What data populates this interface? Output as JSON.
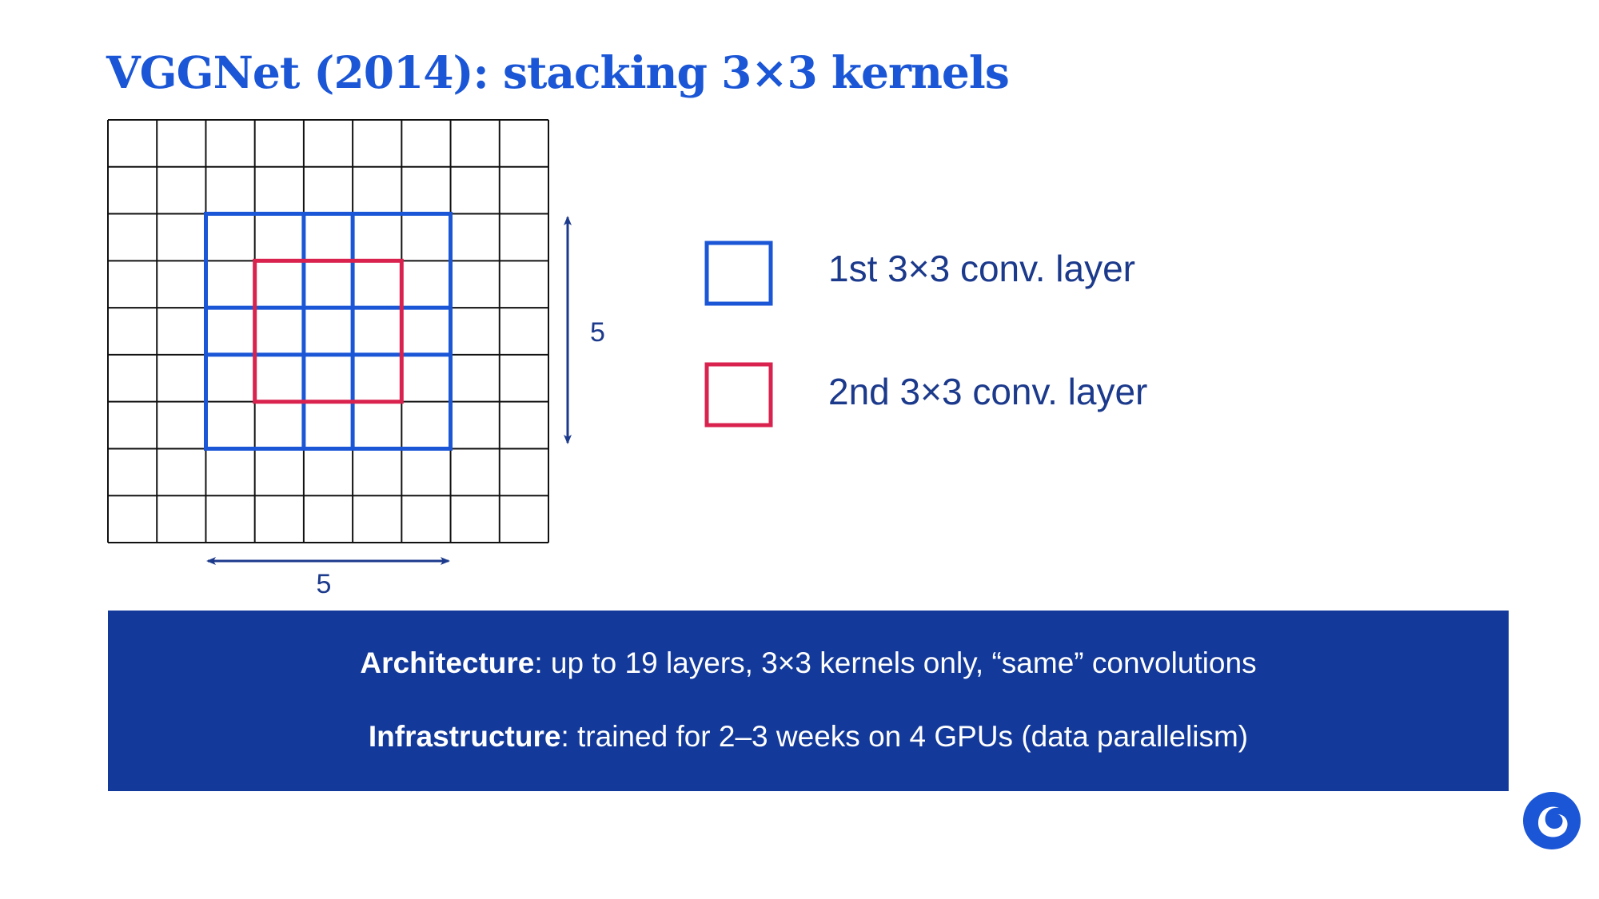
{
  "slide": {
    "title": "VGGNet (2014): stacking 3×3 kernels"
  },
  "diagram": {
    "grid_rows": 9,
    "grid_cols": 9,
    "first_layer_label": "1st 3×3 conv. layer",
    "second_layer_label": "2nd 3×3 conv. layer",
    "width_label": "5",
    "height_label": "5"
  },
  "info": {
    "architecture_term": "Architecture",
    "architecture_text": ": up to 19 layers, 3×3 kernels only, “same” convolutions",
    "infrastructure_term": "Infrastructure",
    "infrastructure_text": ": trained for 2–3 weeks on 4 GPUs (data parallelism)"
  },
  "colors": {
    "title": "#1a56d6",
    "first_layer": "#1a56d6",
    "second_layer": "#d9234e",
    "arrows": "#1c3a8c",
    "info_background": "#13399a",
    "logo": "#1a56d6"
  },
  "icons": {
    "logo": "deepmind-logo-icon"
  }
}
